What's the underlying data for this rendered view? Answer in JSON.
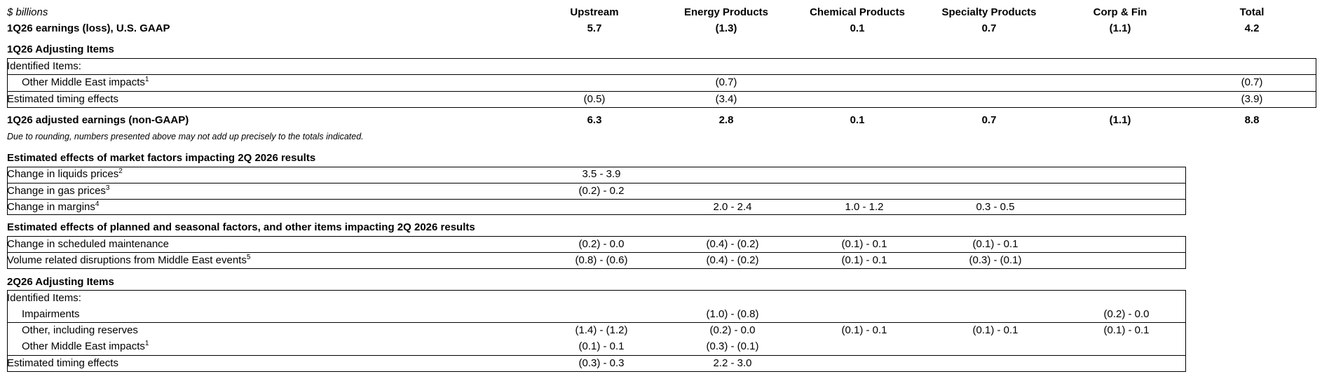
{
  "units_label": "$ billions",
  "columns": [
    "Upstream",
    "Energy Products",
    "Chemical Products",
    "Specialty Products",
    "Corp & Fin",
    "Total"
  ],
  "gaap_row": {
    "label": "1Q26 earnings (loss), U.S. GAAP",
    "values": [
      "5.7",
      "(1.3)",
      "0.1",
      "0.7",
      "(1.1)",
      "4.2"
    ]
  },
  "q1_adjusting": {
    "title": "1Q26 Adjusting Items",
    "identified_label": "Identified Items:",
    "middle_east": {
      "label": "Other Middle East impacts",
      "footnote": "1",
      "values": [
        "",
        "(0.7)",
        "",
        "",
        "",
        "(0.7)"
      ]
    },
    "timing": {
      "label": "Estimated timing effects",
      "values": [
        "(0.5)",
        "(3.4)",
        "",
        "",
        "",
        "(3.9)"
      ]
    }
  },
  "adjusted_row": {
    "label": "1Q26 adjusted earnings (non-GAAP)",
    "values": [
      "6.3",
      "2.8",
      "0.1",
      "0.7",
      "(1.1)",
      "8.8"
    ]
  },
  "rounding_note": "Due to rounding, numbers presented above may not add up precisely to the totals indicated.",
  "market_factors": {
    "title": "Estimated effects of market factors impacting 2Q 2026 results",
    "rows": [
      {
        "label": "Change in liquids prices",
        "footnote": "2",
        "values": [
          "3.5 - 3.9",
          "",
          "",
          "",
          "",
          ""
        ]
      },
      {
        "label": "Change in gas prices",
        "footnote": "3",
        "values": [
          "(0.2) - 0.2",
          "",
          "",
          "",
          "",
          ""
        ]
      },
      {
        "label": "Change in margins",
        "footnote": "4",
        "values": [
          "",
          "2.0 - 2.4",
          "1.0 - 1.2",
          "0.3 - 0.5",
          "",
          ""
        ]
      }
    ]
  },
  "planned_factors": {
    "title": "Estimated effects of planned and seasonal factors, and other items impacting 2Q 2026 results",
    "rows": [
      {
        "label": "Change in scheduled maintenance",
        "footnote": "",
        "values": [
          "(0.2) - 0.0",
          "(0.4) - (0.2)",
          "(0.1) - 0.1",
          "(0.1) - 0.1",
          "",
          ""
        ]
      },
      {
        "label": "Volume related disruptions from Middle East events",
        "footnote": "5",
        "values": [
          "(0.8) - (0.6)",
          "(0.4) - (0.2)",
          "(0.1) - 0.1",
          "(0.3) - (0.1)",
          "",
          ""
        ]
      }
    ]
  },
  "q2_adjusting": {
    "title": "2Q26 Adjusting Items",
    "identified_label": "Identified Items:",
    "rows": [
      {
        "label": "Impairments",
        "footnote": "",
        "indent": true,
        "values": [
          "",
          "(1.0) - (0.8)",
          "",
          "",
          "(0.2) - 0.0",
          ""
        ]
      },
      {
        "label": "Other, including reserves",
        "footnote": "",
        "indent": true,
        "values": [
          "(1.4) - (1.2)",
          "(0.2) - 0.0",
          "(0.1) - 0.1",
          "(0.1) - 0.1",
          "(0.1) - 0.1",
          ""
        ]
      },
      {
        "label": "Other Middle East impacts",
        "footnote": "1",
        "indent": true,
        "values": [
          "(0.1) - 0.1",
          "(0.3) - (0.1)",
          "",
          "",
          "",
          ""
        ]
      },
      {
        "label": "Estimated timing effects",
        "footnote": "",
        "indent": false,
        "values": [
          "(0.3) - 0.3",
          "2.2 - 3.0",
          "",
          "",
          "",
          ""
        ]
      }
    ]
  }
}
